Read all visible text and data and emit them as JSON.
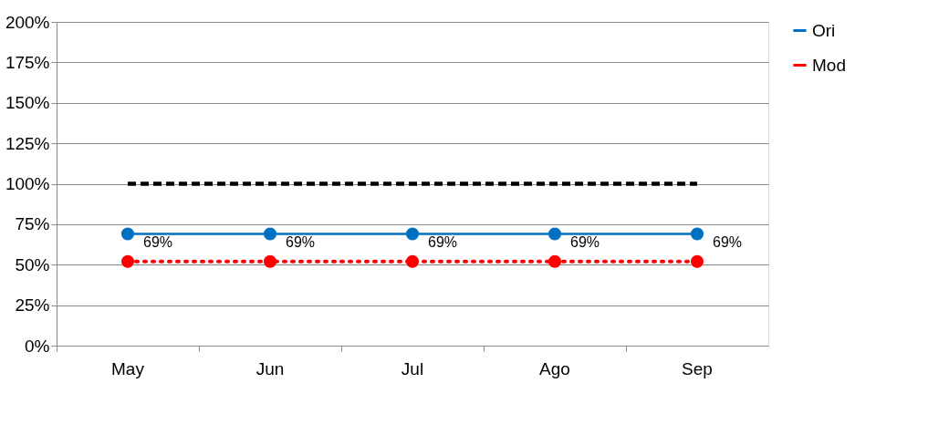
{
  "chart_data": {
    "type": "line",
    "categories": [
      "May",
      "Jun",
      "Jul",
      "Ago",
      "Sep"
    ],
    "series": [
      {
        "name": "Ori",
        "color": "#0070c0",
        "values": [
          69,
          69,
          69,
          69,
          69
        ],
        "marker": "circle",
        "line_style": "solid",
        "value_labels": [
          "69%",
          "69%",
          "69%",
          "69%",
          "69%"
        ]
      },
      {
        "name": "Mod",
        "color": "#ff0000",
        "values": [
          52,
          52,
          52,
          52,
          52
        ],
        "marker": "circle",
        "line_style": "dotted"
      },
      {
        "color": "#000000",
        "values": [
          100,
          100,
          100,
          100,
          100
        ],
        "marker": "none",
        "line_style": "dashed"
      }
    ],
    "ylim": [
      0,
      200
    ],
    "yticks": [
      {
        "value": 0,
        "label": "0%"
      },
      {
        "value": 25,
        "label": "25%"
      },
      {
        "value": 50,
        "label": "50%"
      },
      {
        "value": 75,
        "label": "75%"
      },
      {
        "value": 100,
        "label": "100%"
      },
      {
        "value": 125,
        "label": "125%"
      },
      {
        "value": 150,
        "label": "150%"
      },
      {
        "value": 175,
        "label": "175%"
      },
      {
        "value": 200,
        "label": "200%"
      }
    ],
    "grid": "y",
    "legend": "right"
  }
}
